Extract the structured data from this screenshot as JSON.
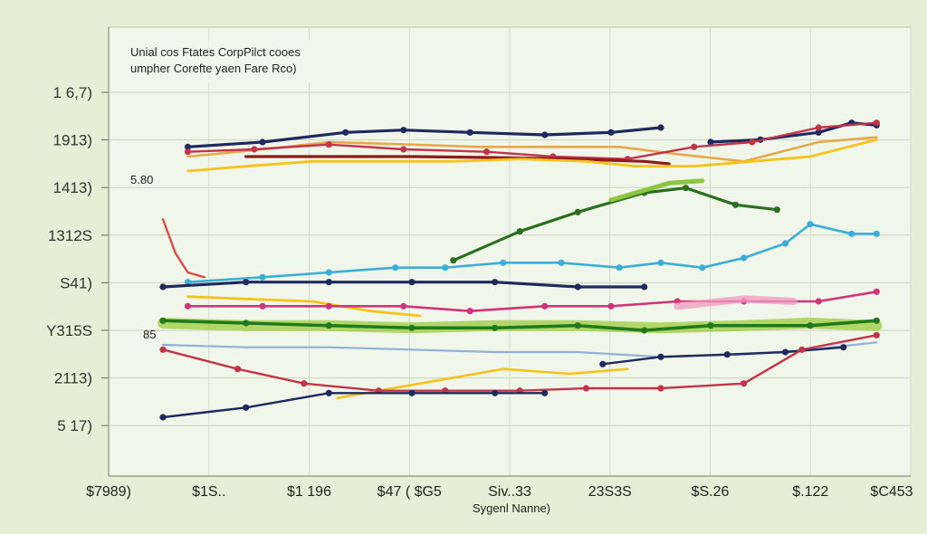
{
  "chart_data": {
    "type": "line",
    "title": "Unial cos Ftates CorpPilct cooes",
    "subtitle": "umpher Corefte yaen Fare Rco)",
    "xlabel": "Sygenl Nanne)",
    "ylabel": "",
    "y_tick_labels": [
      "1 6,7)",
      "1913)",
      "1413)",
      "1312S",
      "S41)",
      "Y315S",
      "2113)",
      "5 17)"
    ],
    "x_tick_labels": [
      "$7989)",
      "$1S..",
      "$1 196",
      "$47 ( $G5",
      "Siv..33",
      "23S3S",
      "$S.26",
      "$.122",
      "$C453"
    ],
    "inline_labels": [
      "5.80",
      "85"
    ],
    "xlim": [
      0,
      9
    ],
    "ylim": [
      0,
      9
    ],
    "grid": true,
    "legend": "none",
    "series": [
      {
        "color": "#1e2a5e",
        "width": 3.2,
        "markers": true,
        "x": [
          0.3,
          1.2,
          2.2,
          2.9,
          3.7,
          4.6,
          5.4,
          6.0
        ],
        "y": [
          6.8,
          6.9,
          7.1,
          7.15,
          7.1,
          7.05,
          7.1,
          7.2
        ]
      },
      {
        "color": "#1e2a5e",
        "width": 3.2,
        "markers": true,
        "x": [
          6.6,
          7.2,
          7.9,
          8.3,
          8.6
        ],
        "y": [
          6.9,
          6.95,
          7.1,
          7.3,
          7.25
        ]
      },
      {
        "color": "#e8a84a",
        "width": 2.6,
        "markers": false,
        "x": [
          0.3,
          1.2,
          2.0,
          3.0,
          3.8,
          4.6,
          5.5,
          6.2,
          7.0,
          7.9,
          8.6
        ],
        "y": [
          6.6,
          6.75,
          6.9,
          6.85,
          6.8,
          6.8,
          6.8,
          6.65,
          6.5,
          6.9,
          7.0
        ]
      },
      {
        "color": "#c2344a",
        "width": 2.4,
        "markers": true,
        "x": [
          0.3,
          1.1,
          2.0,
          2.9,
          3.9,
          4.7,
          5.6,
          6.4,
          7.1,
          7.9,
          8.6
        ],
        "y": [
          6.7,
          6.75,
          6.85,
          6.75,
          6.7,
          6.6,
          6.55,
          6.8,
          6.9,
          7.2,
          7.3
        ]
      },
      {
        "color": "#8f1a1a",
        "width": 3.2,
        "markers": false,
        "x": [
          1.0,
          2.0,
          3.0,
          4.0,
          4.9,
          5.8,
          6.1
        ],
        "y": [
          6.6,
          6.6,
          6.6,
          6.58,
          6.55,
          6.5,
          6.45
        ]
      },
      {
        "color": "#f6c21c",
        "width": 2.8,
        "markers": false,
        "x": [
          0.3,
          1.0,
          1.8,
          2.6,
          3.5,
          4.3,
          5.1,
          5.7,
          6.4,
          7.1,
          7.8,
          8.6
        ],
        "y": [
          6.3,
          6.4,
          6.5,
          6.5,
          6.5,
          6.55,
          6.5,
          6.4,
          6.4,
          6.5,
          6.6,
          6.95
        ]
      },
      {
        "color": "#2a6e1f",
        "width": 3.2,
        "markers": true,
        "x": [
          3.5,
          4.3,
          5.0,
          5.8,
          6.3,
          6.9,
          7.4
        ],
        "y": [
          4.45,
          5.05,
          5.45,
          5.85,
          5.95,
          5.6,
          5.5
        ]
      },
      {
        "color": "#8cc63f",
        "width": 5,
        "markers": false,
        "x": [
          5.4,
          6.1,
          6.5
        ],
        "y": [
          5.7,
          6.05,
          6.1
        ]
      },
      {
        "color": "#dd4a4a",
        "width": 2.4,
        "markers": false,
        "x": [
          0.0,
          0.15,
          0.3,
          0.5
        ],
        "y": [
          5.3,
          4.6,
          4.2,
          4.1
        ]
      },
      {
        "color": "#3aaed8",
        "width": 2.6,
        "markers": true,
        "x": [
          0.3,
          1.2,
          2.0,
          2.8,
          3.4,
          4.1,
          4.8,
          5.5,
          6.0,
          6.5,
          7.0,
          7.5,
          7.8,
          8.3,
          8.6
        ],
        "y": [
          4.0,
          4.1,
          4.2,
          4.3,
          4.3,
          4.4,
          4.4,
          4.3,
          4.4,
          4.3,
          4.5,
          4.8,
          5.2,
          5.0,
          5.0
        ]
      },
      {
        "color": "#1e2a5e",
        "width": 3.2,
        "markers": true,
        "x": [
          0.0,
          1.0,
          2.0,
          3.0,
          4.0,
          5.0,
          5.8
        ],
        "y": [
          3.9,
          4.0,
          4.0,
          4.0,
          4.0,
          3.9,
          3.9
        ]
      },
      {
        "color": "#f6c21c",
        "width": 2.8,
        "markers": false,
        "x": [
          0.3,
          1.0,
          1.8,
          2.5,
          3.1
        ],
        "y": [
          3.7,
          3.65,
          3.6,
          3.4,
          3.3
        ]
      },
      {
        "color": "#d0347a",
        "width": 2.6,
        "markers": true,
        "x": [
          0.3,
          1.2,
          2.0,
          2.9,
          3.7,
          4.6,
          5.4,
          6.2,
          7.0,
          7.9,
          8.6
        ],
        "y": [
          3.5,
          3.5,
          3.5,
          3.5,
          3.4,
          3.5,
          3.5,
          3.6,
          3.6,
          3.6,
          3.8
        ]
      },
      {
        "color": "#f29ac0",
        "width": 8,
        "markers": false,
        "x": [
          6.2,
          7.0,
          7.6
        ],
        "y": [
          3.5,
          3.65,
          3.6
        ]
      },
      {
        "color": "#9ccb3c",
        "width": 12,
        "markers": false,
        "x": [
          0.0,
          1.0,
          2.0,
          3.0,
          4.0,
          5.0,
          6.0,
          7.0,
          7.8,
          8.6
        ],
        "y": [
          3.15,
          3.1,
          3.1,
          3.05,
          3.1,
          3.1,
          3.05,
          3.1,
          3.15,
          3.1
        ]
      },
      {
        "color": "#1f7a1a",
        "width": 3.5,
        "markers": true,
        "x": [
          0.0,
          1.0,
          2.0,
          3.0,
          4.0,
          5.0,
          5.8,
          6.6,
          7.8,
          8.6
        ],
        "y": [
          3.2,
          3.15,
          3.1,
          3.05,
          3.05,
          3.1,
          3.0,
          3.1,
          3.1,
          3.2
        ]
      },
      {
        "color": "#8fb1d8",
        "width": 2.2,
        "markers": false,
        "x": [
          0.0,
          1.0,
          2.0,
          3.0,
          4.0,
          5.0,
          6.0,
          7.0,
          7.8,
          8.6
        ],
        "y": [
          2.7,
          2.65,
          2.65,
          2.6,
          2.55,
          2.55,
          2.45,
          2.5,
          2.6,
          2.75
        ]
      },
      {
        "color": "#1e2a5e",
        "width": 2.4,
        "markers": true,
        "x": [
          5.3,
          6.0,
          6.8,
          7.5,
          8.2
        ],
        "y": [
          2.3,
          2.45,
          2.5,
          2.55,
          2.65
        ]
      },
      {
        "color": "#f6c21c",
        "width": 2.6,
        "markers": false,
        "x": [
          2.1,
          3.1,
          4.1,
          4.9,
          5.6
        ],
        "y": [
          1.6,
          1.9,
          2.2,
          2.1,
          2.2
        ]
      },
      {
        "color": "#c2344a",
        "width": 2.4,
        "markers": true,
        "x": [
          0.0,
          0.9,
          1.7,
          2.6,
          3.4,
          4.3,
          5.1,
          6.0,
          7.0,
          7.7,
          8.6
        ],
        "y": [
          2.6,
          2.2,
          1.9,
          1.75,
          1.75,
          1.75,
          1.8,
          1.8,
          1.9,
          2.6,
          2.9
        ]
      },
      {
        "color": "#1e2a5e",
        "width": 2.4,
        "markers": true,
        "x": [
          0.0,
          1.0,
          2.0,
          3.0,
          4.0,
          4.6
        ],
        "y": [
          1.2,
          1.4,
          1.7,
          1.7,
          1.7,
          1.7
        ]
      }
    ]
  }
}
